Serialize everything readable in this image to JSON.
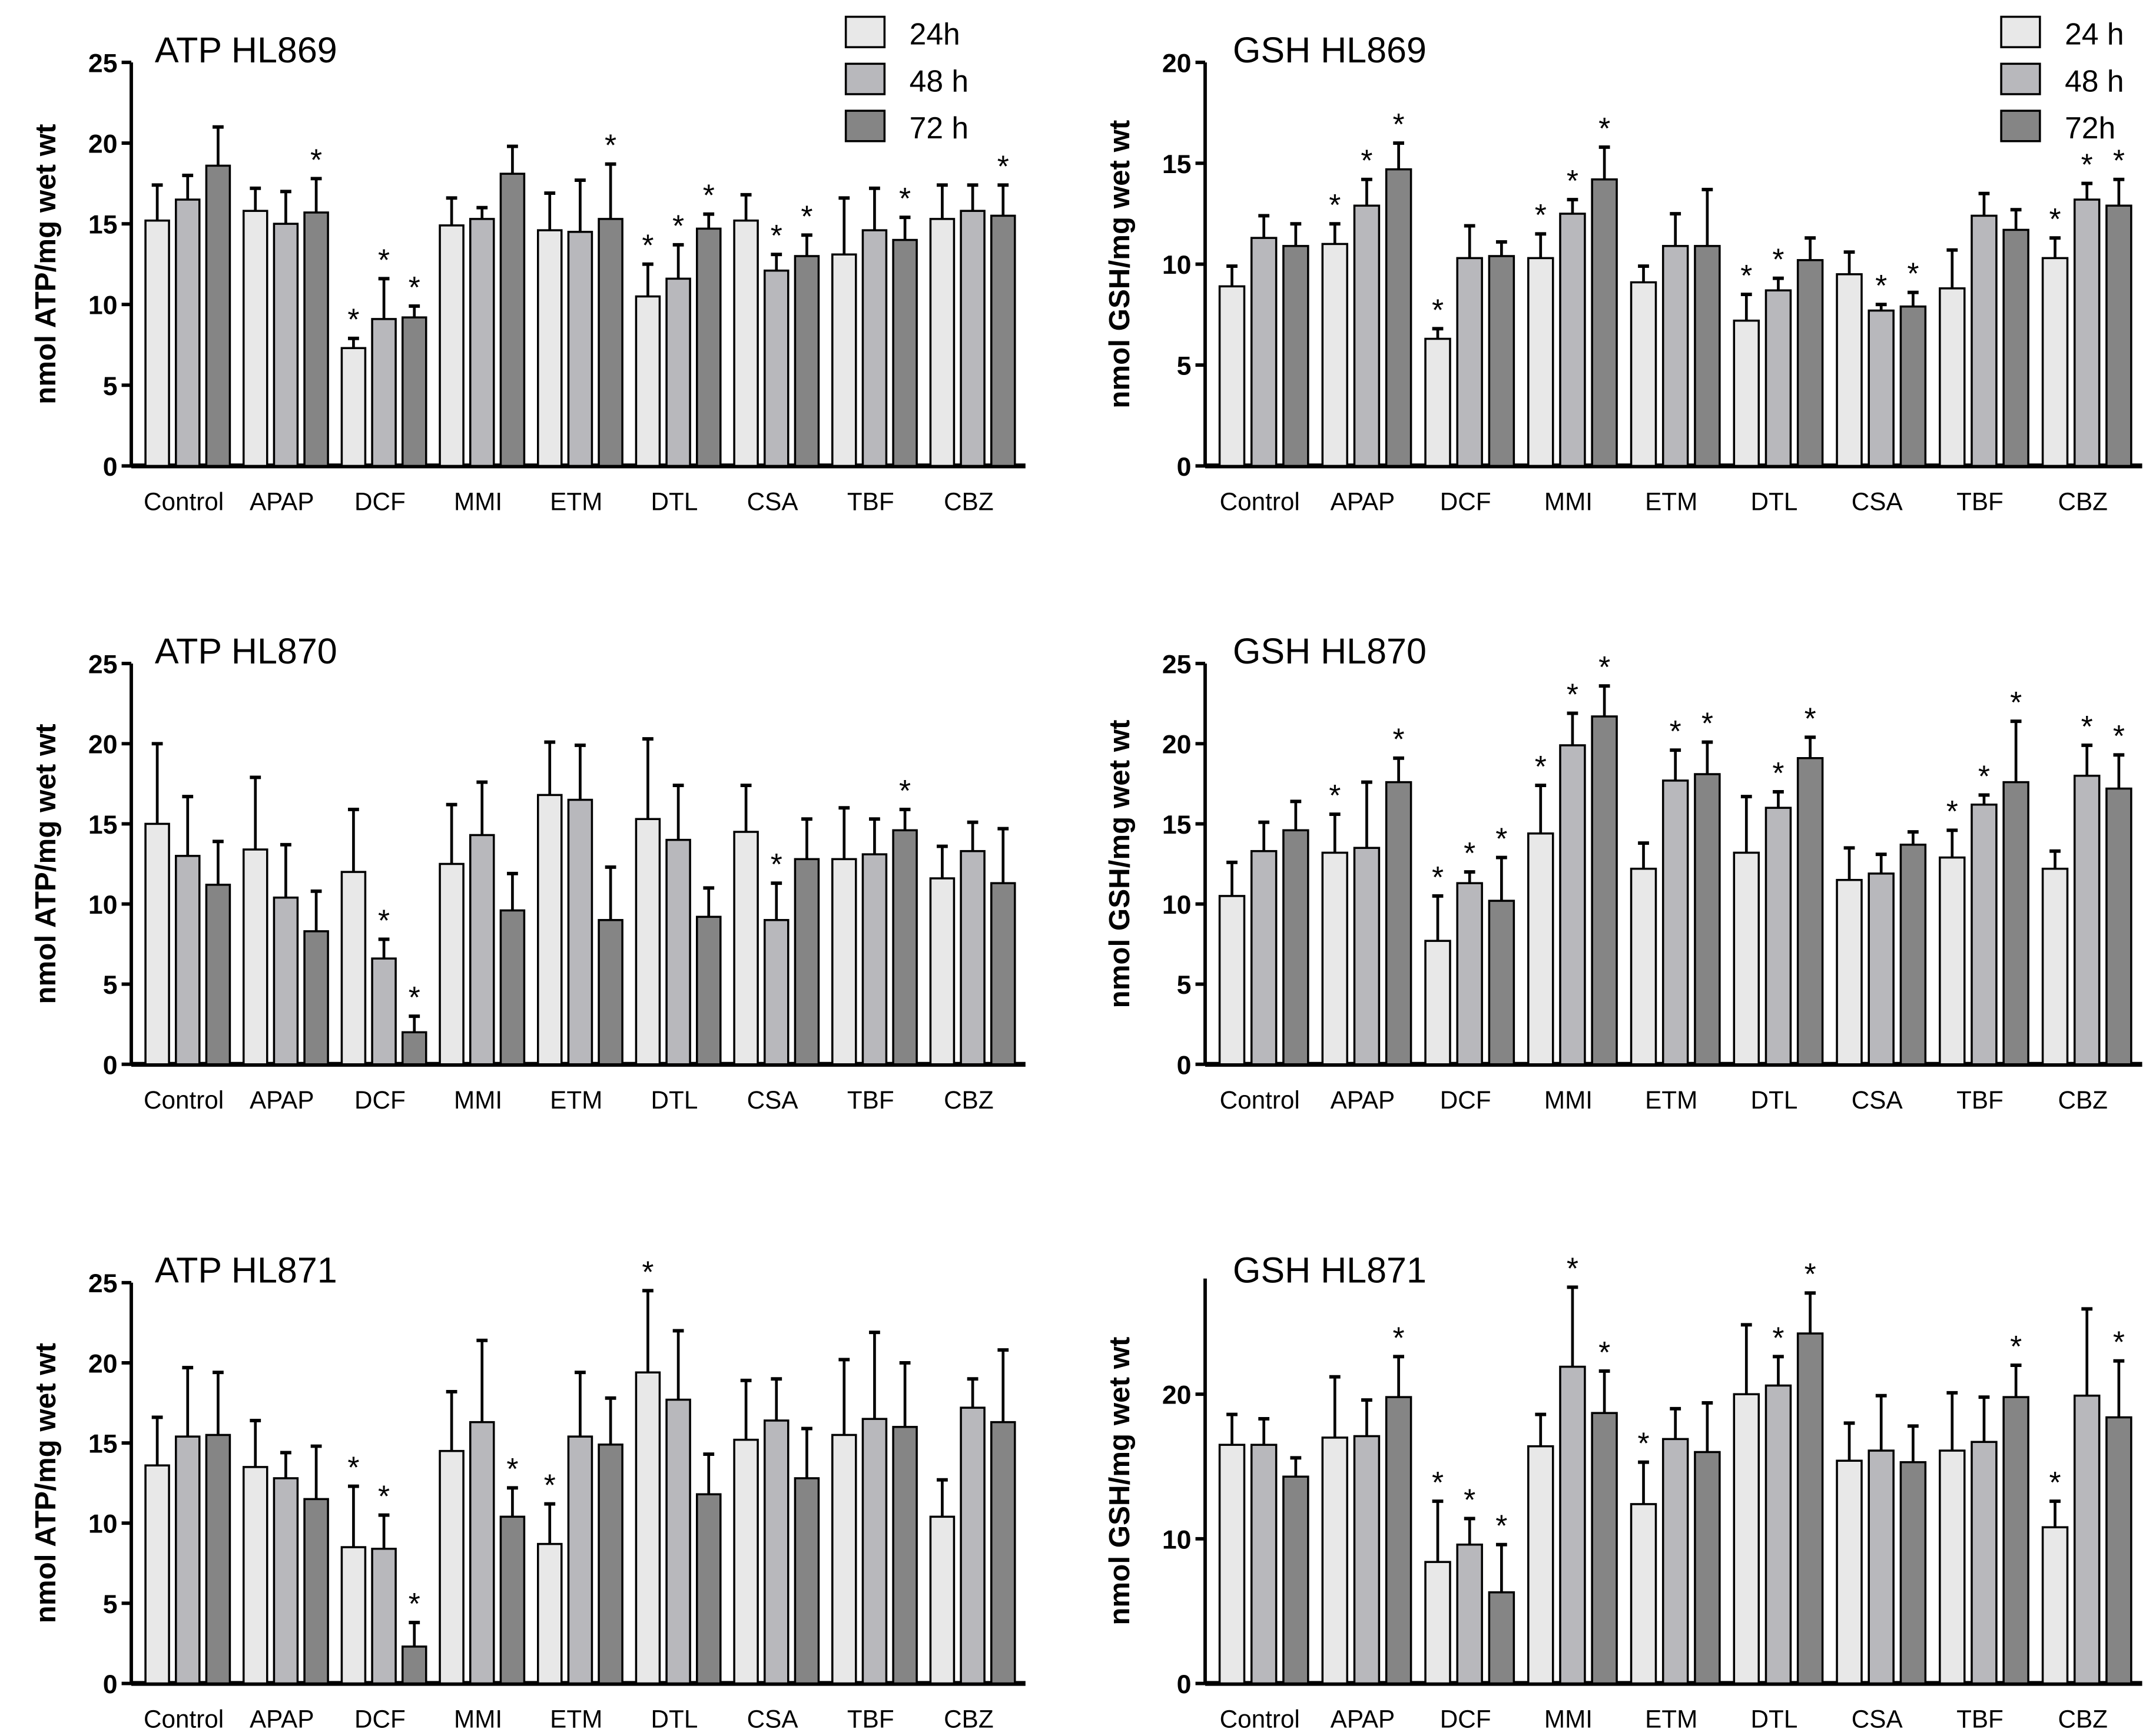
{
  "chart_data": [
    {
      "type": "bar",
      "title": "ATP HL869",
      "ylabel": "nmol ATP/mg wet wt",
      "ylim": [
        0,
        25
      ],
      "yticks": [
        0,
        5,
        10,
        15,
        20,
        25
      ],
      "categories": [
        "Control",
        "APAP",
        "DCF",
        "MMI",
        "ETM",
        "DTL",
        "CSA",
        "TBF",
        "CBZ"
      ],
      "legend": [
        "24h",
        "48 h",
        "72 h"
      ],
      "legend_position": "top-right",
      "series": [
        {
          "name": "24h",
          "values": [
            15.2,
            15.8,
            7.3,
            14.9,
            14.6,
            10.5,
            15.2,
            13.1,
            15.3
          ],
          "error_top": [
            17.4,
            17.2,
            7.9,
            16.6,
            16.9,
            12.5,
            16.8,
            16.6,
            17.4
          ],
          "significant": [
            0,
            0,
            1,
            0,
            0,
            1,
            0,
            0,
            0
          ]
        },
        {
          "name": "48 h",
          "values": [
            16.5,
            15.0,
            9.1,
            15.3,
            14.5,
            11.6,
            12.1,
            14.6,
            15.8
          ],
          "error_top": [
            18.0,
            17.0,
            11.6,
            16.0,
            17.7,
            13.7,
            13.1,
            17.2,
            17.4
          ],
          "significant": [
            0,
            0,
            1,
            0,
            0,
            1,
            1,
            0,
            0
          ]
        },
        {
          "name": "72 h",
          "values": [
            18.6,
            15.7,
            9.2,
            18.1,
            15.3,
            14.7,
            13.0,
            14.0,
            15.5
          ],
          "error_top": [
            21.0,
            17.8,
            9.9,
            19.8,
            18.7,
            15.6,
            14.3,
            15.4,
            17.4
          ],
          "significant": [
            0,
            1,
            1,
            0,
            1,
            1,
            1,
            1,
            1
          ]
        }
      ]
    },
    {
      "type": "bar",
      "title": "GSH HL869",
      "ylabel": "nmol GSH/mg wet wt",
      "ylim": [
        0,
        20
      ],
      "yticks": [
        0,
        5,
        10,
        15,
        20
      ],
      "categories": [
        "Control",
        "APAP",
        "DCF",
        "MMI",
        "ETM",
        "DTL",
        "CSA",
        "TBF",
        "CBZ"
      ],
      "legend": [
        "24 h",
        "48 h",
        "72h"
      ],
      "legend_position": "top-right",
      "series": [
        {
          "name": "24 h",
          "values": [
            8.9,
            11.0,
            6.3,
            10.3,
            9.1,
            7.2,
            9.5,
            8.8,
            10.3
          ],
          "error_top": [
            9.9,
            12.0,
            6.8,
            11.5,
            9.9,
            8.5,
            10.6,
            10.7,
            11.3
          ],
          "significant": [
            0,
            1,
            1,
            1,
            0,
            1,
            0,
            0,
            1
          ]
        },
        {
          "name": "48 h",
          "values": [
            11.3,
            12.9,
            10.3,
            12.5,
            10.9,
            8.7,
            7.7,
            12.4,
            13.2
          ],
          "error_top": [
            12.4,
            14.2,
            11.9,
            13.2,
            12.5,
            9.3,
            8.0,
            13.5,
            14.0
          ],
          "significant": [
            0,
            1,
            0,
            1,
            0,
            1,
            1,
            0,
            1
          ]
        },
        {
          "name": "72h",
          "values": [
            10.9,
            14.7,
            10.4,
            14.2,
            10.9,
            10.2,
            7.9,
            11.7,
            12.9
          ],
          "error_top": [
            12.0,
            16.0,
            11.1,
            15.8,
            13.7,
            11.3,
            8.6,
            12.7,
            14.2
          ],
          "significant": [
            0,
            1,
            0,
            1,
            0,
            0,
            1,
            0,
            1
          ]
        }
      ]
    },
    {
      "type": "bar",
      "title": "ATP HL870",
      "ylabel": "nmol ATP/mg wet wt",
      "ylim": [
        0,
        25
      ],
      "yticks": [
        0,
        5,
        10,
        15,
        20,
        25
      ],
      "categories": [
        "Control",
        "APAP",
        "DCF",
        "MMI",
        "ETM",
        "DTL",
        "CSA",
        "TBF",
        "CBZ"
      ],
      "series": [
        {
          "name": "24h",
          "values": [
            15.0,
            13.4,
            12.0,
            12.5,
            16.8,
            15.3,
            14.5,
            12.8,
            11.6
          ],
          "error_top": [
            20.0,
            17.9,
            15.9,
            16.2,
            20.1,
            20.3,
            17.4,
            16.0,
            13.6
          ],
          "significant": [
            0,
            0,
            0,
            0,
            0,
            0,
            0,
            0,
            0
          ]
        },
        {
          "name": "48 h",
          "values": [
            13.0,
            10.4,
            6.6,
            14.3,
            16.5,
            14.0,
            9.0,
            13.1,
            13.3
          ],
          "error_top": [
            16.7,
            13.7,
            7.8,
            17.6,
            19.9,
            17.4,
            11.3,
            15.3,
            15.1
          ],
          "significant": [
            0,
            0,
            1,
            0,
            0,
            0,
            1,
            0,
            0
          ]
        },
        {
          "name": "72 h",
          "values": [
            11.2,
            8.3,
            2.0,
            9.6,
            9.0,
            9.2,
            12.8,
            14.6,
            11.3
          ],
          "error_top": [
            13.9,
            10.8,
            3.0,
            11.9,
            12.3,
            11.0,
            15.3,
            15.9,
            14.7
          ],
          "significant": [
            0,
            0,
            1,
            0,
            0,
            0,
            0,
            1,
            0
          ]
        }
      ]
    },
    {
      "type": "bar",
      "title": "GSH HL870",
      "ylabel": "nmol GSH/mg wet wt",
      "ylim": [
        0,
        25
      ],
      "yticks": [
        0,
        5,
        10,
        15,
        20,
        25
      ],
      "categories": [
        "Control",
        "APAP",
        "DCF",
        "MMI",
        "ETM",
        "DTL",
        "CSA",
        "TBF",
        "CBZ"
      ],
      "series": [
        {
          "name": "24h",
          "values": [
            10.5,
            13.2,
            7.7,
            14.4,
            12.2,
            13.2,
            11.5,
            12.9,
            12.2
          ],
          "error_top": [
            12.6,
            15.6,
            10.5,
            17.4,
            13.8,
            16.7,
            13.5,
            14.6,
            13.3
          ],
          "significant": [
            0,
            1,
            1,
            1,
            0,
            0,
            0,
            1,
            0
          ]
        },
        {
          "name": "48 h",
          "values": [
            13.3,
            13.5,
            11.3,
            19.9,
            17.7,
            16.0,
            11.9,
            16.2,
            18.0
          ],
          "error_top": [
            15.1,
            17.6,
            12.0,
            21.9,
            19.6,
            17.0,
            13.1,
            16.8,
            19.9
          ],
          "significant": [
            0,
            0,
            1,
            1,
            1,
            1,
            0,
            1,
            1
          ]
        },
        {
          "name": "72 h",
          "values": [
            14.6,
            17.6,
            10.2,
            21.7,
            18.1,
            19.1,
            13.7,
            17.6,
            17.2
          ],
          "error_top": [
            16.4,
            19.1,
            12.9,
            23.6,
            20.1,
            20.4,
            14.5,
            21.4,
            19.3
          ],
          "significant": [
            0,
            1,
            1,
            1,
            1,
            1,
            0,
            1,
            1
          ]
        }
      ]
    },
    {
      "type": "bar",
      "title": "ATP HL871",
      "ylabel": "nmol ATP/mg wet wt",
      "ylim": [
        0,
        25
      ],
      "yticks": [
        0,
        5,
        10,
        15,
        20,
        25
      ],
      "categories": [
        "Control",
        "APAP",
        "DCF",
        "MMI",
        "ETM",
        "DTL",
        "CSA",
        "TBF",
        "CBZ"
      ],
      "series": [
        {
          "name": "24h",
          "values": [
            13.6,
            13.5,
            8.5,
            14.5,
            8.7,
            19.4,
            15.2,
            15.5,
            10.4
          ],
          "error_top": [
            16.6,
            16.4,
            12.3,
            18.2,
            11.2,
            24.5,
            18.9,
            20.2,
            12.7
          ],
          "significant": [
            0,
            0,
            1,
            0,
            1,
            1,
            0,
            0,
            0
          ]
        },
        {
          "name": "48 h",
          "values": [
            15.4,
            12.8,
            8.4,
            16.3,
            15.4,
            17.7,
            16.4,
            16.5,
            17.2
          ],
          "error_top": [
            19.7,
            14.4,
            10.5,
            21.4,
            19.4,
            22.0,
            19.0,
            21.9,
            19.0
          ],
          "significant": [
            0,
            0,
            1,
            0,
            0,
            0,
            0,
            0,
            0
          ]
        },
        {
          "name": "72 h",
          "values": [
            15.5,
            11.5,
            2.3,
            10.4,
            14.9,
            11.8,
            12.8,
            16.0,
            16.3
          ],
          "error_top": [
            19.4,
            14.8,
            3.8,
            12.2,
            17.8,
            14.3,
            15.9,
            20.0,
            20.8
          ],
          "significant": [
            0,
            0,
            1,
            1,
            0,
            0,
            0,
            0,
            0
          ]
        }
      ]
    },
    {
      "type": "bar",
      "title": "GSH HL871",
      "ylabel": "nmol GSH/mg wet wt",
      "ylim": [
        0,
        28
      ],
      "yticks": [
        0,
        10,
        20
      ],
      "categories": [
        "Control",
        "APAP",
        "DCF",
        "MMI",
        "ETM",
        "DTL",
        "CSA",
        "TBF",
        "CBZ"
      ],
      "series": [
        {
          "name": "24h",
          "values": [
            16.5,
            17.0,
            8.4,
            16.4,
            12.4,
            20.0,
            15.4,
            16.1,
            10.8
          ],
          "error_top": [
            18.6,
            21.2,
            12.6,
            18.6,
            15.3,
            24.8,
            18.0,
            20.1,
            12.6
          ],
          "significant": [
            0,
            0,
            1,
            0,
            1,
            0,
            0,
            0,
            1
          ]
        },
        {
          "name": "48 h",
          "values": [
            16.5,
            17.1,
            9.6,
            21.9,
            16.9,
            20.6,
            16.1,
            16.7,
            19.9
          ],
          "error_top": [
            18.3,
            19.6,
            11.4,
            27.4,
            19.0,
            22.6,
            19.9,
            19.8,
            25.9
          ],
          "significant": [
            0,
            0,
            1,
            1,
            0,
            1,
            0,
            0,
            0
          ]
        },
        {
          "name": "72 h",
          "values": [
            14.3,
            19.8,
            6.3,
            18.7,
            16.0,
            24.2,
            15.3,
            19.8,
            18.4
          ],
          "error_top": [
            15.6,
            22.6,
            9.6,
            21.6,
            19.4,
            27.0,
            17.8,
            22.0,
            22.3
          ],
          "significant": [
            0,
            1,
            1,
            1,
            0,
            1,
            0,
            1,
            1
          ]
        }
      ]
    }
  ],
  "colors": {
    "24h": "#e8e8e8",
    "48h": "#b8b8bc",
    "72h": "#858585",
    "axis": "#000000"
  },
  "significance_marker": "*"
}
